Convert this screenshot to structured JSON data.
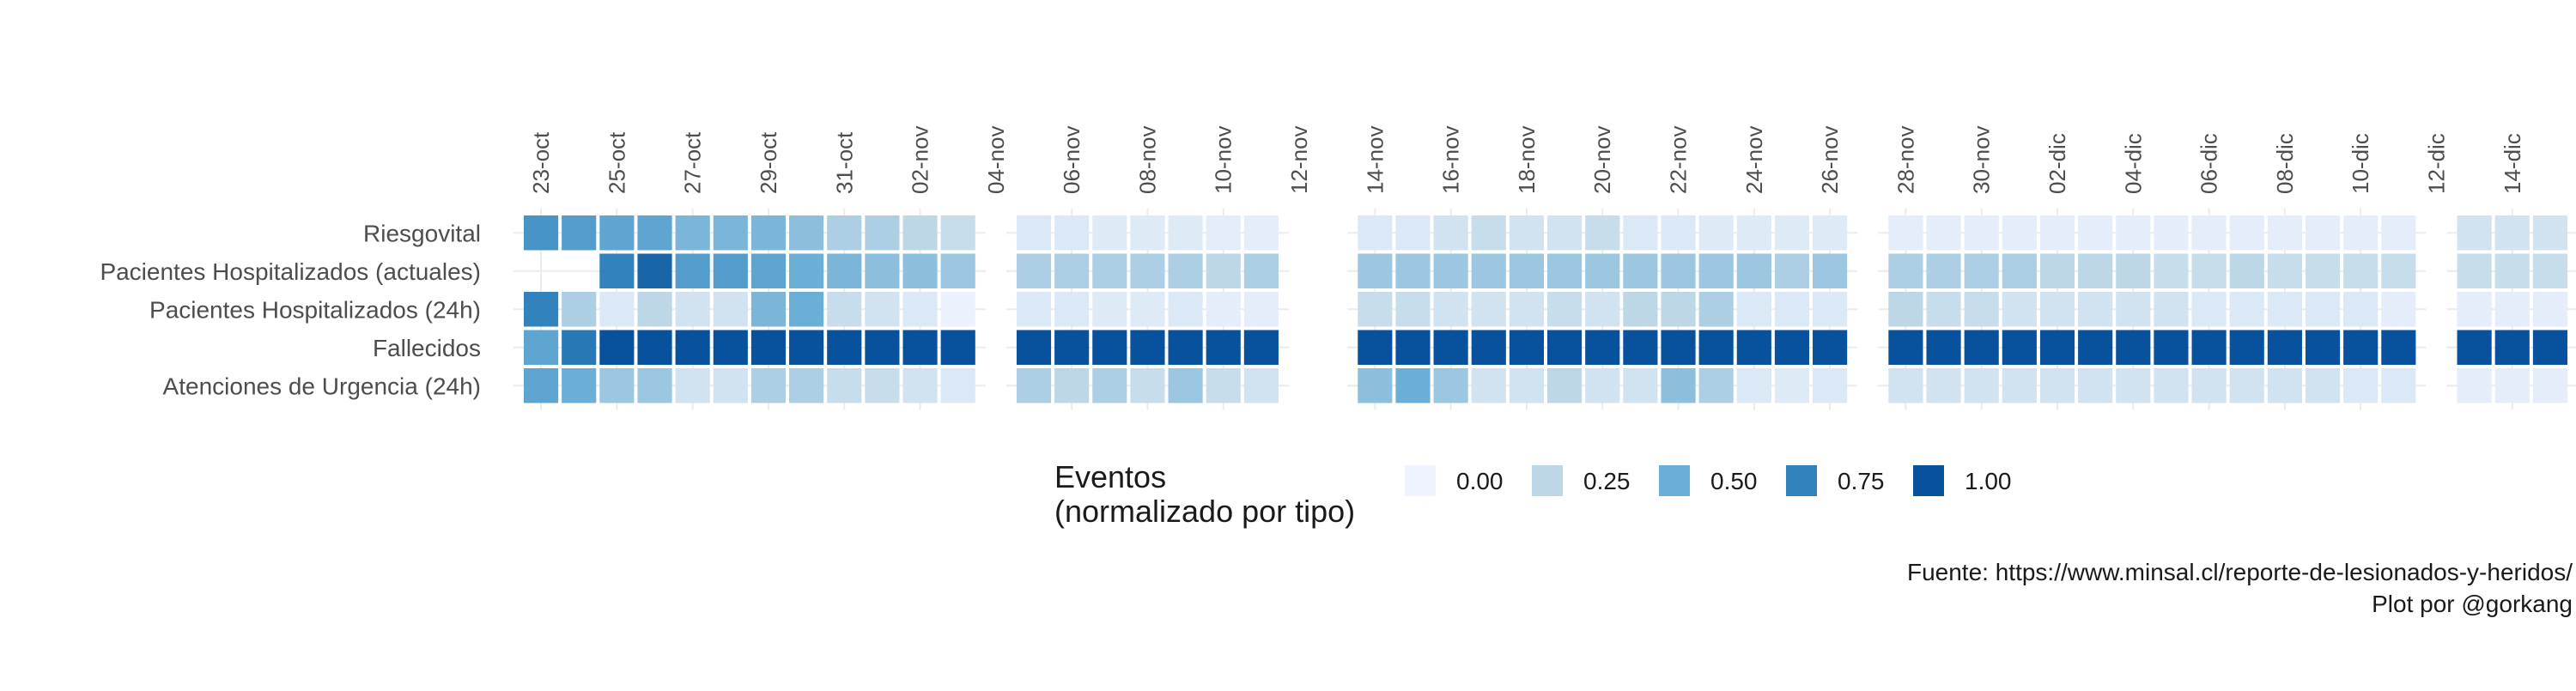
{
  "chart_data": {
    "type": "heatmap",
    "y_categories": [
      "Riesgovital",
      "Pacientes Hospitalizados (actuales)",
      "Pacientes Hospitalizados (24h)",
      "Fallecidos",
      "Atenciones de Urgencia (24h)"
    ],
    "x_tick_labels": [
      "23-oct",
      "25-oct",
      "27-oct",
      "29-oct",
      "31-oct",
      "02-nov",
      "04-nov",
      "06-nov",
      "08-nov",
      "10-nov",
      "12-nov",
      "14-nov",
      "16-nov",
      "18-nov",
      "20-nov",
      "22-nov",
      "24-nov",
      "26-nov",
      "28-nov",
      "30-nov",
      "02-dic",
      "04-dic",
      "06-dic",
      "08-dic",
      "10-dic",
      "12-dic",
      "14-dic"
    ],
    "x_start": "23-oct",
    "x_end": "15-dic",
    "panels": [
      {
        "from": "23-oct",
        "to": "03-nov",
        "dates": [
          "23-oct",
          "24-oct",
          "25-oct",
          "26-oct",
          "27-oct",
          "28-oct",
          "29-oct",
          "30-oct",
          "31-oct",
          "01-nov",
          "02-nov",
          "03-nov"
        ],
        "values": [
          [
            0.65,
            0.6,
            0.55,
            0.55,
            0.45,
            0.45,
            0.45,
            0.4,
            0.3,
            0.3,
            0.25,
            0.2
          ],
          [
            null,
            null,
            0.75,
            0.9,
            0.6,
            0.6,
            0.55,
            0.5,
            0.45,
            0.4,
            0.4,
            0.35
          ],
          [
            0.75,
            0.3,
            0.1,
            0.25,
            0.15,
            0.15,
            0.45,
            0.5,
            0.2,
            0.15,
            0.1,
            0.02
          ],
          [
            0.55,
            0.8,
            1.0,
            1.0,
            1.0,
            1.0,
            1.0,
            1.0,
            1.0,
            1.0,
            1.0,
            1.0
          ],
          [
            0.55,
            0.5,
            0.35,
            0.35,
            0.15,
            0.15,
            0.3,
            0.3,
            0.2,
            0.2,
            0.15,
            0.1
          ]
        ]
      },
      {
        "from": "05-nov",
        "to": "11-nov",
        "dates": [
          "05-nov",
          "06-nov",
          "07-nov",
          "08-nov",
          "09-nov",
          "10-nov",
          "11-nov"
        ],
        "values": [
          [
            0.1,
            0.1,
            0.08,
            0.08,
            0.08,
            0.06,
            0.05
          ],
          [
            0.3,
            0.3,
            0.3,
            0.3,
            0.3,
            0.25,
            0.3
          ],
          [
            0.1,
            0.1,
            0.08,
            0.08,
            0.1,
            0.05,
            0.05
          ],
          [
            1.0,
            1.0,
            1.0,
            1.0,
            1.0,
            1.0,
            1.0
          ],
          [
            0.3,
            0.25,
            0.3,
            0.2,
            0.35,
            0.2,
            0.15
          ]
        ]
      },
      {
        "from": "14-nov",
        "to": "26-nov",
        "dates": [
          "14-nov",
          "15-nov",
          "16-nov",
          "17-nov",
          "18-nov",
          "19-nov",
          "20-nov",
          "21-nov",
          "22-nov",
          "23-nov",
          "24-nov",
          "25-nov",
          "26-nov"
        ],
        "values": [
          [
            0.1,
            0.1,
            0.15,
            0.2,
            0.15,
            0.15,
            0.2,
            0.1,
            0.1,
            0.08,
            0.08,
            0.08,
            0.08
          ],
          [
            0.35,
            0.35,
            0.35,
            0.35,
            0.35,
            0.35,
            0.35,
            0.35,
            0.35,
            0.35,
            0.35,
            0.3,
            0.35
          ],
          [
            0.2,
            0.2,
            0.15,
            0.15,
            0.15,
            0.2,
            0.15,
            0.25,
            0.25,
            0.3,
            0.1,
            0.1,
            0.1
          ],
          [
            1.0,
            1.0,
            1.0,
            1.0,
            1.0,
            1.0,
            1.0,
            1.0,
            1.0,
            1.0,
            1.0,
            1.0,
            1.0
          ],
          [
            0.4,
            0.5,
            0.35,
            0.15,
            0.15,
            0.25,
            0.15,
            0.15,
            0.4,
            0.3,
            0.1,
            0.08,
            0.1
          ]
        ]
      },
      {
        "from": "28-nov",
        "to": "11-dic",
        "dates": [
          "28-nov",
          "29-nov",
          "30-nov",
          "01-dic",
          "02-dic",
          "03-dic",
          "04-dic",
          "05-dic",
          "06-dic",
          "07-dic",
          "08-dic",
          "09-dic",
          "10-dic",
          "11-dic"
        ],
        "values": [
          [
            0.05,
            0.05,
            0.05,
            0.05,
            0.05,
            0.05,
            0.05,
            0.05,
            0.05,
            0.05,
            0.05,
            0.05,
            0.05,
            0.05
          ],
          [
            0.3,
            0.3,
            0.3,
            0.3,
            0.25,
            0.25,
            0.25,
            0.2,
            0.2,
            0.25,
            0.2,
            0.2,
            0.2,
            0.2
          ],
          [
            0.25,
            0.2,
            0.2,
            0.15,
            0.15,
            0.15,
            0.15,
            0.15,
            0.1,
            0.1,
            0.1,
            0.1,
            0.1,
            0.05
          ],
          [
            1.0,
            1.0,
            1.0,
            1.0,
            1.0,
            1.0,
            1.0,
            1.0,
            1.0,
            1.0,
            1.0,
            1.0,
            1.0,
            1.0
          ],
          [
            0.15,
            0.15,
            0.15,
            0.15,
            0.15,
            0.15,
            0.15,
            0.15,
            0.15,
            0.15,
            0.15,
            0.15,
            0.1,
            0.1
          ]
        ]
      },
      {
        "from": "13-dic",
        "to": "15-dic",
        "dates": [
          "13-dic",
          "14-dic",
          "15-dic"
        ],
        "values": [
          [
            0.15,
            0.15,
            0.15
          ],
          [
            0.2,
            0.2,
            0.2
          ],
          [
            0.05,
            0.05,
            0.05
          ],
          [
            1.0,
            1.0,
            1.0
          ],
          [
            0.05,
            0.05,
            0.05
          ]
        ]
      }
    ],
    "scale": {
      "min": 0,
      "max": 1,
      "colors": [
        "#eff3ff",
        "#bdd7e7",
        "#6baed6",
        "#3182bd",
        "#08519c"
      ]
    },
    "legend": {
      "title_lines": [
        "Eventos",
        "(normalizado por tipo)"
      ],
      "items": [
        {
          "label": "0.00",
          "value": 0.0
        },
        {
          "label": "0.25",
          "value": 0.25
        },
        {
          "label": "0.50",
          "value": 0.5
        },
        {
          "label": "0.75",
          "value": 0.75
        },
        {
          "label": "1.00",
          "value": 1.0
        }
      ],
      "position": "bottom"
    },
    "caption_lines": [
      "Fuente: https://www.minsal.cl/reporte-de-lesionados-y-heridos/",
      "Plot por @gorkang"
    ],
    "grid": true,
    "colors": {
      "grid": "#ebebeb",
      "text": "#4d4d4d",
      "tile_border": "#ffffff",
      "background": "#ffffff"
    }
  }
}
